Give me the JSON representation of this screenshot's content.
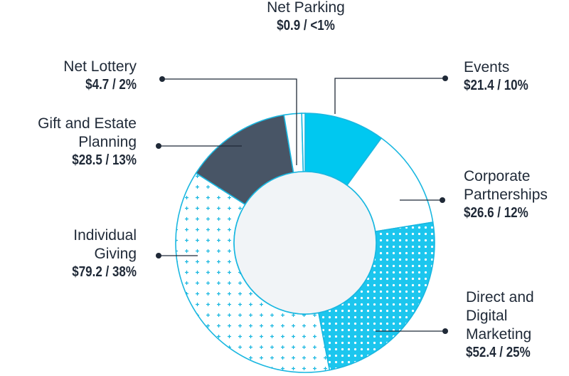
{
  "chart_data": {
    "type": "pie",
    "donut": true,
    "slices": [
      {
        "key": "events",
        "name": "Events",
        "display_value": "$21.4 / 10%",
        "value": 21.4,
        "percent": 10,
        "color": "#00c8f0",
        "pattern": "solid"
      },
      {
        "key": "corporate",
        "name": "Corporate\nPartnerships",
        "display_value": "$26.6 / 12%",
        "value": 26.6,
        "percent": 12,
        "color": "#ffffff",
        "pattern": "none"
      },
      {
        "key": "direct",
        "name": "Direct and\nDigital\nMarketing",
        "display_value": "$52.4 / 25%",
        "value": 52.4,
        "percent": 25,
        "color": "#1cc6ee",
        "pattern": "dots"
      },
      {
        "key": "individual",
        "name": "Individual\nGiving",
        "display_value": "$79.2 / 38%",
        "value": 79.2,
        "percent": 38,
        "color": "#ffffff",
        "pattern": "plus"
      },
      {
        "key": "gift",
        "name": "Gift and Estate\nPlanning",
        "display_value": "$28.5 / 13%",
        "value": 28.5,
        "percent": 13,
        "color": "#485566",
        "pattern": "solid"
      },
      {
        "key": "lottery",
        "name": "Net Lottery",
        "display_value": "$4.7 / 2%",
        "value": 4.7,
        "percent": 2,
        "color": "#ffffff",
        "pattern": "none"
      },
      {
        "key": "parking",
        "name": "Net Parking",
        "display_value": "$0.9 / <1%",
        "value": 0.9,
        "percent": 0.4,
        "color": "#ffffff",
        "pattern": "none"
      }
    ],
    "colors": {
      "outline": "#1ab7e0",
      "center_fill": "#f1f4f7",
      "text": "#1f2937",
      "leader": "#1f2937"
    }
  }
}
